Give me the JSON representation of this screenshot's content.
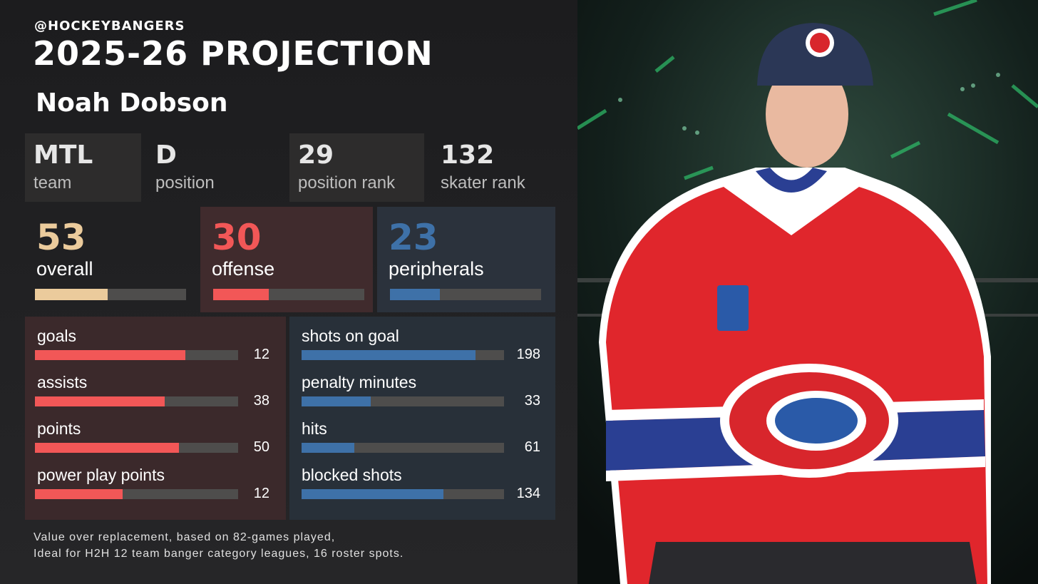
{
  "header": {
    "handle": "@HOCKEYBANGERS",
    "title": "2025-26 PROJECTION",
    "player": "Noah Dobson"
  },
  "info": [
    {
      "value": "MTL",
      "label": "team"
    },
    {
      "value": "D",
      "label": "position"
    },
    {
      "value": 29,
      "label": "position rank"
    },
    {
      "value": 132,
      "label": "skater rank"
    }
  ],
  "scores": [
    {
      "value": 53,
      "label": "overall",
      "bar": 0.48,
      "color": "#ebcb9c"
    },
    {
      "value": 30,
      "label": "offense",
      "bar": 0.37,
      "color": "#f25757"
    },
    {
      "value": 23,
      "label": "peripherals",
      "bar": 0.33,
      "color": "#3e71a8"
    }
  ],
  "offense_stats": {
    "color": "#f25757",
    "rows": [
      {
        "label": "goals",
        "value": 12,
        "bar": 0.74
      },
      {
        "label": "assists",
        "value": 38,
        "bar": 0.64
      },
      {
        "label": "points",
        "value": 50,
        "bar": 0.71
      },
      {
        "label": "power play points",
        "value": 12,
        "bar": 0.43
      }
    ]
  },
  "peripheral_stats": {
    "color": "#3e71a8",
    "rows": [
      {
        "label": "shots on goal",
        "value": 198,
        "bar": 0.86
      },
      {
        "label": "penalty minutes",
        "value": 33,
        "bar": 0.34
      },
      {
        "label": "hits",
        "value": 61,
        "bar": 0.26
      },
      {
        "label": "blocked shots",
        "value": 134,
        "bar": 0.7
      }
    ]
  },
  "footnote": [
    "Value over replacement, based on 82-games played,",
    "Ideal for H2H 12 team banger category leagues, 16 roster spots."
  ]
}
